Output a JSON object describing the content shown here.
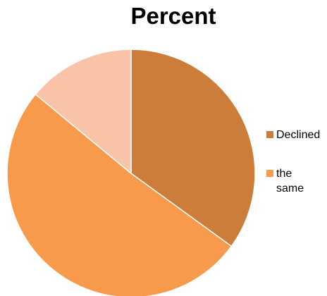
{
  "chart_data": {
    "type": "pie",
    "title": "Percent",
    "slices": [
      {
        "label": "Declined",
        "value": 35,
        "color": "#CC7D3A"
      },
      {
        "label": "the same",
        "value": 51,
        "color": "#F79A4B"
      },
      {
        "label": "",
        "value": 14,
        "color": "#F9C3A8"
      }
    ],
    "legend_position": "right"
  },
  "legend": {
    "item0": "Declined",
    "item1_line1": "the",
    "item1_line2": "same"
  }
}
